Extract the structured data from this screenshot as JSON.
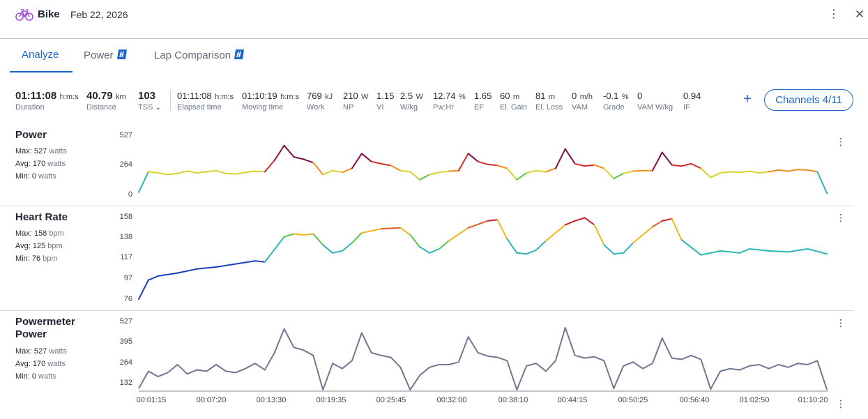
{
  "header": {
    "activity_type": "Bike",
    "date": "Feb 22, 2026",
    "icons": {
      "activity": "bike-icon",
      "more": "more-vertical-icon",
      "close": "close-icon"
    }
  },
  "tabs": [
    {
      "label": "Analyze",
      "active": true
    },
    {
      "label": "Power",
      "premium_icon": "premium-badge-icon"
    },
    {
      "label": "Lap Comparison",
      "premium_icon": "premium-badge-icon"
    }
  ],
  "stats": {
    "duration": {
      "value": "01:11:08",
      "unit": "h:m:s",
      "label": "Duration"
    },
    "distance": {
      "value": "40.79",
      "unit": "km",
      "label": "Distance"
    },
    "tss": {
      "value": "103",
      "label": "TSS"
    },
    "elapsed": {
      "value": "01:11:08",
      "unit": "h:m:s",
      "label": "Elapsed time"
    },
    "moving": {
      "value": "01:10:19",
      "unit": "h:m:s",
      "label": "Moving time"
    },
    "work": {
      "value": "769",
      "unit": "kJ",
      "label": "Work"
    },
    "np": {
      "value": "210",
      "unit": "W",
      "label": "NP"
    },
    "vi": {
      "value": "1.15",
      "label": "VI"
    },
    "wkg": {
      "value": "2.5",
      "unit": "W",
      "label": "W/kg"
    },
    "pwhr": {
      "value": "12.74",
      "unit": "%",
      "label": "Pw:Hr"
    },
    "ef": {
      "value": "1.65",
      "label": "EF"
    },
    "elgain": {
      "value": "60",
      "unit": "m",
      "label": "El. Gain"
    },
    "elloss": {
      "value": "81",
      "unit": "m",
      "label": "El. Loss"
    },
    "vam": {
      "value": "0",
      "unit": "m/h",
      "label": "VAM"
    },
    "grade": {
      "value": "-0.1",
      "unit": "%",
      "label": "Grade"
    },
    "vamwkg": {
      "value": "0",
      "label": "VAM W/kg"
    },
    "if": {
      "value": "0.94",
      "label": "IF"
    }
  },
  "actions": {
    "add_symbol": "+",
    "add_icon": "plus-icon",
    "channels_label": "Channels 4/11"
  },
  "panels": {
    "power": {
      "title": "Power",
      "max_label": "Max:",
      "max_value": "527",
      "max_unit": "watts",
      "avg_label": "Avg:",
      "avg_value": "170",
      "avg_unit": "watts",
      "min_label": "Min:",
      "min_value": "0",
      "min_unit": "watts",
      "yticks": [
        "527",
        "264",
        "0"
      ]
    },
    "hr": {
      "title": "Heart Rate",
      "max_label": "Max:",
      "max_value": "158",
      "max_unit": "bpm",
      "avg_label": "Avg:",
      "avg_value": "125",
      "avg_unit": "bpm",
      "min_label": "Min:",
      "min_value": "76",
      "min_unit": "bpm",
      "yticks": [
        "158",
        "138",
        "117",
        "97",
        "76"
      ]
    },
    "pm": {
      "title_line1": "Powermeter",
      "title_line2": "Power",
      "max_label": "Max:",
      "max_value": "527",
      "max_unit": "watts",
      "avg_label": "Avg:",
      "avg_value": "170",
      "avg_unit": "watts",
      "min_label": "Min:",
      "min_value": "0",
      "min_unit": "watts",
      "yticks": [
        "527",
        "395",
        "264",
        "132"
      ]
    }
  },
  "xaxis": [
    "00:01:15",
    "00:07:20",
    "00:13:30",
    "00:19:35",
    "00:25:45",
    "00:32:00",
    "00:38:10",
    "00:44:15",
    "00:50:25",
    "00:56:40",
    "01:02:50",
    "01:10:20"
  ],
  "chart_data": [
    {
      "type": "line",
      "title": "Power",
      "ylabel": "watts",
      "ylim": [
        0,
        527
      ],
      "x_range": [
        "00:00:00",
        "01:11:08"
      ],
      "color_scale": [
        "#1d3fbf",
        "#2f8fd6",
        "#2bb5b5",
        "#5ec24a",
        "#d7d22a",
        "#f28c1b",
        "#d72a2a",
        "#7a1045"
      ],
      "series": [
        {
          "x_min": [
            0,
            1,
            2,
            3,
            4,
            5,
            6,
            7,
            8,
            9,
            10,
            11,
            12,
            13,
            14,
            15,
            16,
            17,
            18,
            19,
            20,
            21,
            22,
            23,
            24,
            25,
            26,
            27,
            28,
            29,
            30,
            31,
            32,
            33,
            34,
            35,
            36,
            37,
            38,
            39,
            40,
            41,
            42,
            43,
            44,
            45,
            46,
            47,
            48,
            49,
            50,
            51,
            52,
            53,
            54,
            55,
            56,
            57,
            58,
            59,
            60,
            61,
            62,
            63,
            64,
            65,
            66,
            67,
            68,
            69,
            70,
            71
          ],
          "values": [
            20,
            200,
            190,
            175,
            185,
            205,
            190,
            200,
            210,
            185,
            180,
            195,
            205,
            200,
            300,
            430,
            330,
            310,
            280,
            175,
            210,
            195,
            230,
            360,
            290,
            270,
            255,
            210,
            200,
            130,
            175,
            195,
            205,
            210,
            360,
            290,
            265,
            255,
            230,
            130,
            190,
            210,
            200,
            230,
            400,
            270,
            250,
            260,
            230,
            140,
            185,
            205,
            210,
            210,
            370,
            260,
            250,
            270,
            230,
            150,
            190,
            200,
            195,
            205,
            190,
            200,
            215,
            205,
            220,
            215,
            200,
            10
          ]
        }
      ]
    },
    {
      "type": "line",
      "title": "Heart Rate",
      "ylabel": "bpm",
      "ylim": [
        76,
        158
      ],
      "x_range": [
        "00:00:00",
        "01:11:08"
      ],
      "series": [
        {
          "x_min": [
            0,
            1,
            2,
            4,
            6,
            8,
            10,
            12,
            13,
            15,
            16,
            17,
            18,
            19,
            20,
            21,
            22,
            23,
            25,
            27,
            28,
            29,
            30,
            31,
            32,
            34,
            36,
            37,
            38,
            39,
            40,
            41,
            42,
            44,
            45,
            46,
            47,
            48,
            49,
            50,
            51,
            53,
            54,
            55,
            56,
            58,
            60,
            62,
            63,
            65,
            67,
            69,
            71
          ],
          "values": [
            76,
            95,
            99,
            102,
            106,
            108,
            111,
            114,
            113,
            138,
            141,
            140,
            141,
            130,
            122,
            124,
            132,
            142,
            146,
            147,
            140,
            128,
            122,
            126,
            134,
            147,
            154,
            155,
            136,
            122,
            121,
            125,
            134,
            150,
            154,
            157,
            150,
            130,
            121,
            122,
            132,
            148,
            154,
            156,
            135,
            120,
            124,
            122,
            126,
            124,
            123,
            126,
            121
          ]
        }
      ]
    },
    {
      "type": "line",
      "title": "Powermeter Power",
      "ylabel": "watts",
      "ylim": [
        0,
        527
      ],
      "x_range": [
        "00:00:00",
        "01:11:08"
      ],
      "series": [
        {
          "x_min": [
            0,
            1,
            2,
            3,
            4,
            5,
            6,
            7,
            8,
            9,
            10,
            11,
            12,
            13,
            14,
            15,
            16,
            17,
            18,
            19,
            20,
            21,
            22,
            23,
            24,
            25,
            26,
            27,
            28,
            29,
            30,
            31,
            32,
            33,
            34,
            35,
            36,
            37,
            38,
            39,
            40,
            41,
            42,
            43,
            44,
            45,
            46,
            47,
            48,
            49,
            50,
            51,
            52,
            53,
            54,
            55,
            56,
            57,
            58,
            59,
            60,
            61,
            62,
            63,
            64,
            65,
            66,
            67,
            68,
            69,
            70,
            71
          ],
          "values": [
            20,
            150,
            110,
            140,
            200,
            130,
            160,
            150,
            200,
            150,
            140,
            170,
            210,
            160,
            290,
            470,
            330,
            310,
            270,
            10,
            210,
            170,
            230,
            440,
            290,
            270,
            255,
            180,
            10,
            120,
            180,
            200,
            200,
            220,
            410,
            290,
            265,
            255,
            230,
            10,
            190,
            210,
            150,
            230,
            480,
            270,
            250,
            260,
            230,
            20,
            190,
            220,
            170,
            210,
            400,
            250,
            240,
            270,
            240,
            15,
            150,
            170,
            160,
            190,
            200,
            170,
            200,
            180,
            210,
            200,
            230,
            10
          ]
        }
      ]
    }
  ]
}
